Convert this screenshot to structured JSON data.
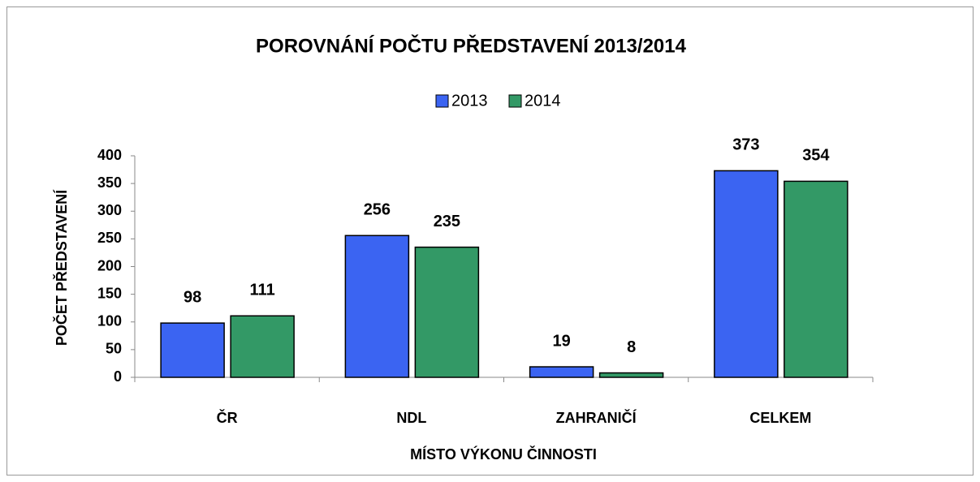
{
  "chart_data": {
    "type": "bar",
    "title": "POROVNÁNÍ POČTU PŘEDSTAVENÍ 2013/2014",
    "categories": [
      "ČR",
      "NDL",
      "ZAHRANIČÍ",
      "CELKEM"
    ],
    "series": [
      {
        "name": "2013",
        "color": "#3b64f2",
        "values": [
          98,
          256,
          19,
          373
        ]
      },
      {
        "name": "2014",
        "color": "#339966",
        "values": [
          111,
          235,
          8,
          354
        ]
      }
    ],
    "ylim": [
      0,
      400
    ],
    "yticks": [
      0,
      50,
      100,
      150,
      200,
      250,
      300,
      350,
      400
    ],
    "y_label": "POČET PŘEDSTAVENÍ",
    "x_label": "MÍSTO VÝKONU ČINNOSTI",
    "legend": "top"
  }
}
